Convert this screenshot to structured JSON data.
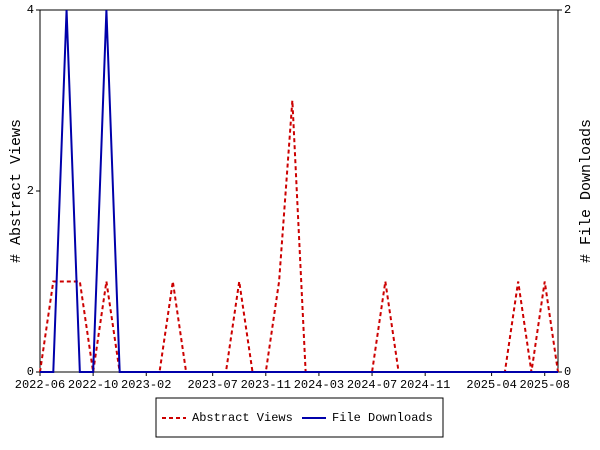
{
  "chart_data": {
    "type": "line",
    "ylabel": "# Abstract Views",
    "y2label": "# File Downloads",
    "x": [
      "2022-06",
      "2022-07",
      "2022-08",
      "2022-09",
      "2022-10",
      "2022-11",
      "2022-12",
      "2023-01",
      "2023-02",
      "2023-03",
      "2023-04",
      "2023-05",
      "2023-06",
      "2023-07",
      "2023-08",
      "2023-09",
      "2023-10",
      "2023-11",
      "2023-12",
      "2024-01",
      "2024-02",
      "2024-03",
      "2024-04",
      "2024-05",
      "2024-06",
      "2024-07",
      "2024-08",
      "2024-09",
      "2024-10",
      "2024-11",
      "2024-12",
      "2025-01",
      "2025-02",
      "2025-03",
      "2025-04",
      "2025-05",
      "2025-06",
      "2025-07",
      "2025-08",
      "2025-09"
    ],
    "xlim": [
      "2022-06",
      "2025-09"
    ],
    "xticks": [
      "2022-06",
      "2022-10",
      "2023-02",
      "2023-07",
      "2023-11",
      "2024-03",
      "2024-07",
      "2024-11",
      "2025-04",
      "2025-08"
    ],
    "ylim": [
      0,
      4
    ],
    "yticks": [
      0,
      2,
      4
    ],
    "y2lim": [
      0,
      2
    ],
    "y2ticks": [
      0,
      2
    ],
    "legend": "bottom",
    "series": [
      {
        "name": "Abstract Views",
        "color": "#cc0000",
        "dash": true,
        "values": [
          0,
          1,
          1,
          1,
          0,
          1,
          0,
          0,
          0,
          0,
          1,
          0,
          0,
          0,
          0,
          1,
          0,
          0,
          1,
          3,
          0,
          0,
          0,
          0,
          0,
          0,
          1,
          0,
          0,
          0,
          0,
          0,
          0,
          0,
          0,
          0,
          1,
          0,
          1,
          0
        ]
      },
      {
        "name": "File Downloads",
        "color": "#0000aa",
        "dash": false,
        "axis": "y2",
        "values": [
          0,
          0,
          2,
          0,
          0,
          2,
          0,
          0,
          0,
          0,
          0,
          0,
          0,
          0,
          0,
          0,
          0,
          0,
          0,
          0,
          0,
          0,
          0,
          0,
          0,
          0,
          0,
          0,
          0,
          0,
          0,
          0,
          0,
          0,
          0,
          0,
          0,
          0,
          0,
          0
        ]
      }
    ]
  }
}
